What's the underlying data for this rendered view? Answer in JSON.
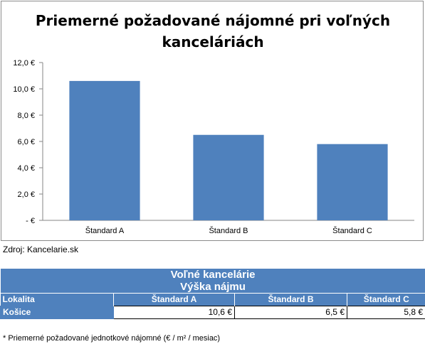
{
  "chart_data": {
    "type": "bar",
    "title": "Priemerné požadované nájomné pri voľných kanceláriách",
    "title_lines": [
      "Priemerné požadované nájomné pri voľných",
      "kanceláriách"
    ],
    "categories": [
      "Štandard A",
      "Štandard B",
      "Štandard C"
    ],
    "values": [
      10.6,
      6.5,
      5.8
    ],
    "ylim": [
      0,
      12
    ],
    "yticks": [
      0,
      2,
      4,
      6,
      8,
      10,
      12
    ],
    "ytick_labels": [
      "-  €",
      "2,0 €",
      "4,0 €",
      "6,0 €",
      "8,0 €",
      "10,0 €",
      "12,0 €"
    ],
    "grid": false,
    "bar_color": "#4f81bd"
  },
  "source": "Zdroj: Kancelarie.sk",
  "table": {
    "title": "Voľné kancelárie",
    "subtitle": "Výška nájmu",
    "col_location": "Lokalita",
    "columns": [
      "Štandard A",
      "Štandard B",
      "Štandard C"
    ],
    "rows": [
      {
        "location": "Košice",
        "values": [
          "10,6 €",
          "6,5 €",
          "5,8 €"
        ]
      }
    ]
  },
  "footnote": "* Priemerné požadované jednotkové nájomné (€ / m² / mesiac)"
}
